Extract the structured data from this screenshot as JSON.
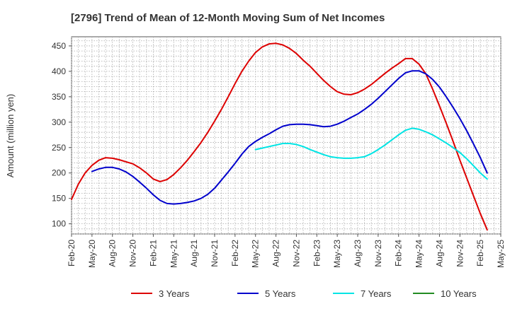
{
  "chart_data": {
    "type": "line",
    "title": "[2796]  Trend of Mean of 12-Month Moving Sum of Net Incomes",
    "xlabel": "",
    "ylabel": "Amount (million yen)",
    "ylim": [
      80,
      468
    ],
    "yticks": [
      100,
      150,
      200,
      250,
      300,
      350,
      400,
      450
    ],
    "x_tick_labels": [
      "Feb-20",
      "May-20",
      "Aug-20",
      "Nov-20",
      "Feb-21",
      "May-21",
      "Aug-21",
      "Nov-21",
      "Feb-22",
      "May-22",
      "Aug-22",
      "Nov-22",
      "Feb-23",
      "May-23",
      "Aug-23",
      "Nov-23",
      "Feb-24",
      "May-24",
      "Aug-24",
      "Nov-24",
      "Feb-25",
      "May-25"
    ],
    "grid": true,
    "legend_position": "bottom",
    "series": [
      {
        "name": "3 Years",
        "color": "#dd0000",
        "points": [
          [
            "Feb-20",
            148
          ],
          [
            "Mar-20",
            178
          ],
          [
            "Apr-20",
            200
          ],
          [
            "May-20",
            215
          ],
          [
            "Jun-20",
            225
          ],
          [
            "Jul-20",
            230
          ],
          [
            "Aug-20",
            229
          ],
          [
            "Sep-20",
            226
          ],
          [
            "Oct-20",
            222
          ],
          [
            "Nov-20",
            218
          ],
          [
            "Dec-20",
            210
          ],
          [
            "Jan-21",
            200
          ],
          [
            "Feb-21",
            188
          ],
          [
            "Mar-21",
            183
          ],
          [
            "Apr-21",
            187
          ],
          [
            "May-21",
            197
          ],
          [
            "Jun-21",
            210
          ],
          [
            "Jul-21",
            225
          ],
          [
            "Aug-21",
            242
          ],
          [
            "Sep-21",
            260
          ],
          [
            "Oct-21",
            280
          ],
          [
            "Nov-21",
            302
          ],
          [
            "Dec-21",
            325
          ],
          [
            "Jan-22",
            350
          ],
          [
            "Feb-22",
            376
          ],
          [
            "Mar-22",
            400
          ],
          [
            "Apr-22",
            420
          ],
          [
            "May-22",
            437
          ],
          [
            "Jun-22",
            448
          ],
          [
            "Jul-22",
            454
          ],
          [
            "Aug-22",
            455
          ],
          [
            "Sep-22",
            452
          ],
          [
            "Oct-22",
            445
          ],
          [
            "Nov-22",
            435
          ],
          [
            "Dec-22",
            422
          ],
          [
            "Jan-23",
            410
          ],
          [
            "Feb-23",
            396
          ],
          [
            "Mar-23",
            382
          ],
          [
            "Apr-23",
            370
          ],
          [
            "May-23",
            360
          ],
          [
            "Jun-23",
            355
          ],
          [
            "Jul-23",
            354
          ],
          [
            "Aug-23",
            358
          ],
          [
            "Sep-23",
            365
          ],
          [
            "Oct-23",
            374
          ],
          [
            "Nov-23",
            385
          ],
          [
            "Dec-23",
            396
          ],
          [
            "Jan-24",
            406
          ],
          [
            "Feb-24",
            415
          ],
          [
            "Mar-24",
            425
          ],
          [
            "Apr-24",
            425
          ],
          [
            "May-24",
            414
          ],
          [
            "Jun-24",
            395
          ],
          [
            "Jul-24",
            365
          ],
          [
            "Aug-24",
            332
          ],
          [
            "Sep-24",
            298
          ],
          [
            "Oct-24",
            262
          ],
          [
            "Nov-24",
            225
          ],
          [
            "Dec-24",
            190
          ],
          [
            "Jan-25",
            155
          ],
          [
            "Feb-25",
            120
          ],
          [
            "Mar-25",
            88
          ]
        ]
      },
      {
        "name": "5 Years",
        "color": "#0000cc",
        "points": [
          [
            "May-20",
            203
          ],
          [
            "Jun-20",
            208
          ],
          [
            "Jul-20",
            211
          ],
          [
            "Aug-20",
            211
          ],
          [
            "Sep-20",
            208
          ],
          [
            "Oct-20",
            202
          ],
          [
            "Nov-20",
            193
          ],
          [
            "Dec-20",
            182
          ],
          [
            "Jan-21",
            170
          ],
          [
            "Feb-21",
            157
          ],
          [
            "Mar-21",
            146
          ],
          [
            "Apr-21",
            140
          ],
          [
            "May-21",
            139
          ],
          [
            "Jun-21",
            140
          ],
          [
            "Jul-21",
            142
          ],
          [
            "Aug-21",
            145
          ],
          [
            "Sep-21",
            150
          ],
          [
            "Oct-21",
            158
          ],
          [
            "Nov-21",
            170
          ],
          [
            "Dec-21",
            186
          ],
          [
            "Jan-22",
            202
          ],
          [
            "Feb-22",
            219
          ],
          [
            "Mar-22",
            237
          ],
          [
            "Apr-22",
            252
          ],
          [
            "May-22",
            262
          ],
          [
            "Jun-22",
            270
          ],
          [
            "Jul-22",
            277
          ],
          [
            "Aug-22",
            285
          ],
          [
            "Sep-22",
            292
          ],
          [
            "Oct-22",
            295
          ],
          [
            "Nov-22",
            296
          ],
          [
            "Dec-22",
            296
          ],
          [
            "Jan-23",
            295
          ],
          [
            "Feb-23",
            293
          ],
          [
            "Mar-23",
            291
          ],
          [
            "Apr-23",
            292
          ],
          [
            "May-23",
            296
          ],
          [
            "Jun-23",
            302
          ],
          [
            "Jul-23",
            309
          ],
          [
            "Aug-23",
            316
          ],
          [
            "Sep-23",
            325
          ],
          [
            "Oct-23",
            335
          ],
          [
            "Nov-23",
            347
          ],
          [
            "Dec-23",
            360
          ],
          [
            "Jan-24",
            373
          ],
          [
            "Feb-24",
            386
          ],
          [
            "Mar-24",
            397
          ],
          [
            "Apr-24",
            401
          ],
          [
            "May-24",
            401
          ],
          [
            "Jun-24",
            395
          ],
          [
            "Jul-24",
            384
          ],
          [
            "Aug-24",
            369
          ],
          [
            "Sep-24",
            350
          ],
          [
            "Oct-24",
            329
          ],
          [
            "Nov-24",
            307
          ],
          [
            "Dec-24",
            283
          ],
          [
            "Jan-25",
            257
          ],
          [
            "Feb-25",
            230
          ],
          [
            "Mar-25",
            200
          ]
        ]
      },
      {
        "name": "7 Years",
        "color": "#00e5e5",
        "points": [
          [
            "May-22",
            246
          ],
          [
            "Jun-22",
            249
          ],
          [
            "Jul-22",
            252
          ],
          [
            "Aug-22",
            255
          ],
          [
            "Sep-22",
            258
          ],
          [
            "Oct-22",
            258
          ],
          [
            "Nov-22",
            256
          ],
          [
            "Dec-22",
            252
          ],
          [
            "Jan-23",
            246
          ],
          [
            "Feb-23",
            241
          ],
          [
            "Mar-23",
            236
          ],
          [
            "Apr-23",
            232
          ],
          [
            "May-23",
            230
          ],
          [
            "Jun-23",
            229
          ],
          [
            "Jul-23",
            229
          ],
          [
            "Aug-23",
            230
          ],
          [
            "Sep-23",
            232
          ],
          [
            "Oct-23",
            238
          ],
          [
            "Nov-23",
            246
          ],
          [
            "Dec-23",
            255
          ],
          [
            "Jan-24",
            265
          ],
          [
            "Feb-24",
            275
          ],
          [
            "Mar-24",
            284
          ],
          [
            "Apr-24",
            288
          ],
          [
            "May-24",
            286
          ],
          [
            "Jun-24",
            281
          ],
          [
            "Jul-24",
            275
          ],
          [
            "Aug-24",
            267
          ],
          [
            "Sep-24",
            259
          ],
          [
            "Oct-24",
            250
          ],
          [
            "Nov-24",
            240
          ],
          [
            "Dec-24",
            228
          ],
          [
            "Jan-25",
            214
          ],
          [
            "Feb-25",
            200
          ],
          [
            "Mar-25",
            188
          ]
        ]
      },
      {
        "name": "10 Years",
        "color": "#228b22",
        "points": []
      }
    ]
  }
}
